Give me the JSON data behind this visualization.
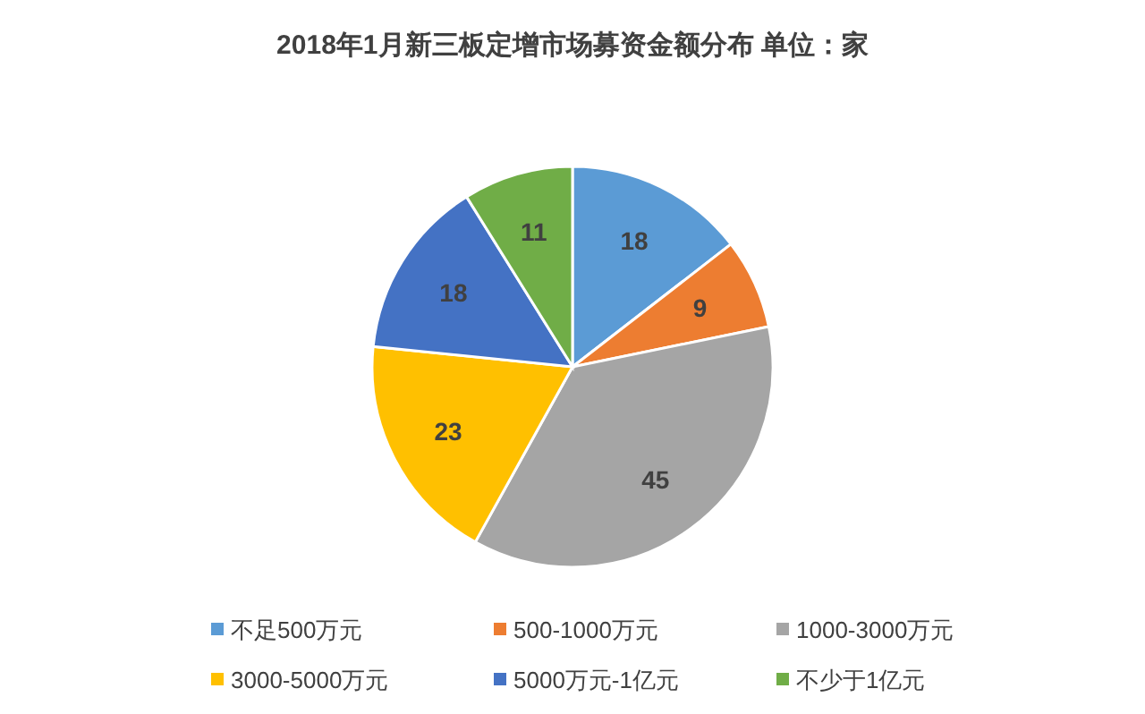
{
  "chart_data": {
    "type": "pie",
    "title": "2018年1月新三板定增市场募资金额分布 单位：家",
    "categories": [
      "不足500万元",
      "500-1000万元",
      "1000-3000万元",
      "3000-5000万元",
      "5000万元-1亿元",
      "不少于1亿元"
    ],
    "values": [
      18,
      9,
      45,
      23,
      18,
      11
    ],
    "colors": [
      "#5b9bd5",
      "#ed7d31",
      "#a5a5a5",
      "#ffc000",
      "#4472c4",
      "#70ad47"
    ],
    "data_labels": true,
    "legend": "bottom"
  }
}
